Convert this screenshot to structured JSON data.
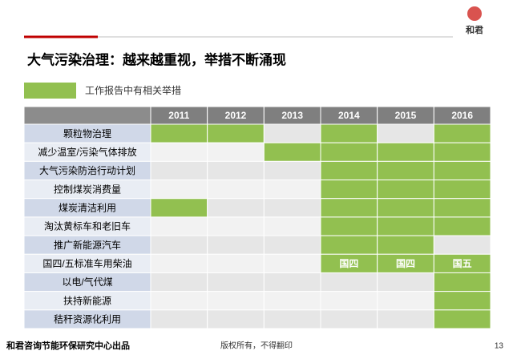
{
  "header": {
    "logo": "和君",
    "title": "大气污染治理：越来越重视，举措不断涌现"
  },
  "legend": {
    "label": "工作报告中有相关举措"
  },
  "table": {
    "columns": [
      "2011",
      "2012",
      "2013",
      "2014",
      "2015",
      "2016"
    ],
    "rows": [
      {
        "label": "颗粒物治理",
        "cells": [
          true,
          true,
          false,
          true,
          false,
          true
        ]
      },
      {
        "label": "减少温室/污染气体排放",
        "cells": [
          false,
          false,
          true,
          true,
          true,
          true
        ]
      },
      {
        "label": "大气污染防治行动计划",
        "cells": [
          false,
          false,
          false,
          true,
          true,
          true
        ]
      },
      {
        "label": "控制煤炭消费量",
        "cells": [
          false,
          false,
          false,
          true,
          true,
          true
        ]
      },
      {
        "label": "煤炭清洁利用",
        "cells": [
          true,
          false,
          false,
          true,
          true,
          true
        ]
      },
      {
        "label": "淘汰黄标车和老旧车",
        "cells": [
          false,
          false,
          false,
          true,
          true,
          true
        ]
      },
      {
        "label": "推广新能源汽车",
        "cells": [
          false,
          false,
          false,
          true,
          true,
          false
        ]
      },
      {
        "label": "国四/五标准车用柴油",
        "cells": [
          false,
          false,
          false,
          "国四",
          "国四",
          "国五"
        ]
      },
      {
        "label": "以电/气代煤",
        "cells": [
          false,
          false,
          false,
          false,
          false,
          true
        ]
      },
      {
        "label": "扶持新能源",
        "cells": [
          false,
          false,
          false,
          false,
          false,
          true
        ]
      },
      {
        "label": "秸秆资源化利用",
        "cells": [
          false,
          false,
          false,
          false,
          false,
          true
        ]
      }
    ]
  },
  "footer": {
    "source": "和君咨询节能环保研究中心出品",
    "copyright": "版权所有，不得翻印",
    "page": "13"
  }
}
